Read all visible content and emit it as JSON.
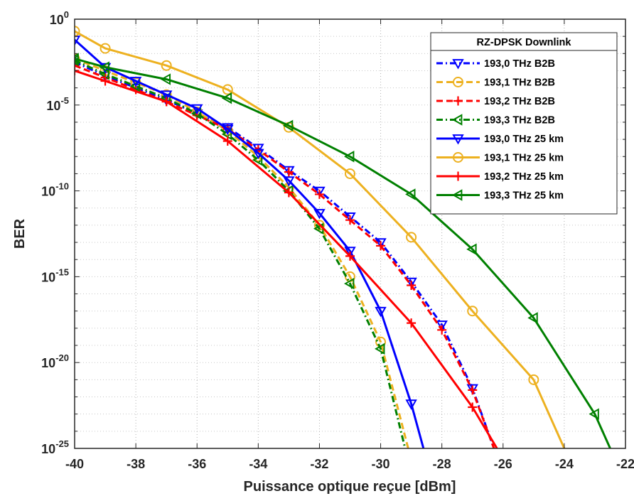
{
  "chart_data": {
    "type": "line",
    "xlabel": "Puissance optique reçue [dBm]",
    "ylabel": "BER",
    "xlim": [
      -40,
      -22
    ],
    "ylim_exp": [
      -25,
      0
    ],
    "yscale": "log",
    "x_ticks": [
      -40,
      -38,
      -36,
      -34,
      -32,
      -30,
      -28,
      -26,
      -24,
      -22
    ],
    "x_tick_labels": [
      "-40",
      "-38",
      "-36",
      "-34",
      "-32",
      "-30",
      "-28",
      "-26",
      "-24",
      "-22"
    ],
    "y_ticks_exp": [
      0,
      -5,
      -10,
      -15,
      -20,
      -25
    ],
    "y_tick_base": "10",
    "y_tick_exponents": [
      "0",
      "-5",
      "-10",
      "-15",
      "-20",
      "-25"
    ],
    "grid": true,
    "legend_title": "RZ-DPSK Downlink",
    "legend_position": "top-right",
    "series": [
      {
        "name": "193,0 THz B2B",
        "color": "#0000ff",
        "style": "dashdot",
        "marker": "triangle-down",
        "x": [
          -40,
          -39,
          -38,
          -37,
          -36,
          -35,
          -34,
          -33,
          -32,
          -31,
          -30,
          -29,
          -28,
          -27,
          -26.3
        ],
        "y_exp": [
          -2.5,
          -3.3,
          -4.0,
          -4.7,
          -5.5,
          -6.3,
          -7.5,
          -8.8,
          -10.0,
          -11.5,
          -13.0,
          -15.3,
          -17.8,
          -21.5,
          -25
        ]
      },
      {
        "name": "193,1 THz B2B",
        "color": "#edb120",
        "style": "dash",
        "marker": "circle",
        "x": [
          -40,
          -39,
          -38,
          -37,
          -36,
          -35,
          -34,
          -33,
          -32,
          -31,
          -30,
          -29.1
        ],
        "y_exp": [
          -2.3,
          -3.0,
          -3.7,
          -4.4,
          -5.4,
          -6.5,
          -8.0,
          -9.8,
          -12.0,
          -15.0,
          -18.8,
          -25
        ]
      },
      {
        "name": "193,2 THz B2B",
        "color": "#ff0000",
        "style": "dash",
        "marker": "plus",
        "x": [
          -40,
          -39,
          -38,
          -37,
          -36,
          -35,
          -34,
          -33,
          -32,
          -31,
          -30,
          -29,
          -28,
          -27,
          -26.3
        ],
        "y_exp": [
          -2.7,
          -3.4,
          -4.1,
          -4.8,
          -5.6,
          -6.4,
          -7.6,
          -8.9,
          -10.2,
          -11.7,
          -13.2,
          -15.5,
          -18.1,
          -21.6,
          -25
        ]
      },
      {
        "name": "193,3 THz B2B",
        "color": "#008000",
        "style": "dashdot",
        "marker": "triangle-left",
        "x": [
          -40,
          -39,
          -38,
          -37,
          -36,
          -35,
          -34,
          -33,
          -32,
          -31,
          -30,
          -29.2
        ],
        "y_exp": [
          -2.4,
          -3.2,
          -3.9,
          -4.6,
          -5.5,
          -6.7,
          -8.2,
          -10.0,
          -12.2,
          -15.4,
          -19.2,
          -25
        ]
      },
      {
        "name": "193,0 THz 25 km",
        "color": "#0000ff",
        "style": "solid",
        "marker": "triangle-down",
        "x": [
          -40,
          -39,
          -38,
          -37,
          -36,
          -35,
          -34,
          -33,
          -32,
          -31,
          -30,
          -29,
          -28.6
        ],
        "y_exp": [
          -1.2,
          -2.8,
          -3.6,
          -4.4,
          -5.2,
          -6.4,
          -7.8,
          -9.4,
          -11.3,
          -13.5,
          -17.0,
          -22.4,
          -25
        ]
      },
      {
        "name": "193,1 THz 25 km",
        "color": "#edb120",
        "style": "solid",
        "marker": "circle",
        "x": [
          -40,
          -39,
          -37,
          -35,
          -33,
          -31,
          -29,
          -27,
          -25,
          -24
        ],
        "y_exp": [
          -0.7,
          -1.7,
          -2.7,
          -4.1,
          -6.3,
          -9.0,
          -12.7,
          -17.0,
          -21.0,
          -25
        ]
      },
      {
        "name": "193,2 THz 25 km",
        "color": "#ff0000",
        "style": "solid",
        "marker": "plus",
        "x": [
          -40,
          -39,
          -37,
          -35,
          -33,
          -31,
          -29,
          -27,
          -26.2
        ],
        "y_exp": [
          -3.0,
          -3.6,
          -4.8,
          -7.1,
          -10.1,
          -13.8,
          -17.7,
          -22.6,
          -25
        ]
      },
      {
        "name": "193,3 THz 25 km",
        "color": "#008000",
        "style": "solid",
        "marker": "triangle-left",
        "x": [
          -40,
          -39,
          -37,
          -35,
          -33,
          -31,
          -29,
          -27,
          -25,
          -23,
          -22.5
        ],
        "y_exp": [
          -2.3,
          -2.8,
          -3.5,
          -4.6,
          -6.2,
          -8.0,
          -10.2,
          -13.4,
          -17.4,
          -23.0,
          -25
        ]
      }
    ]
  }
}
